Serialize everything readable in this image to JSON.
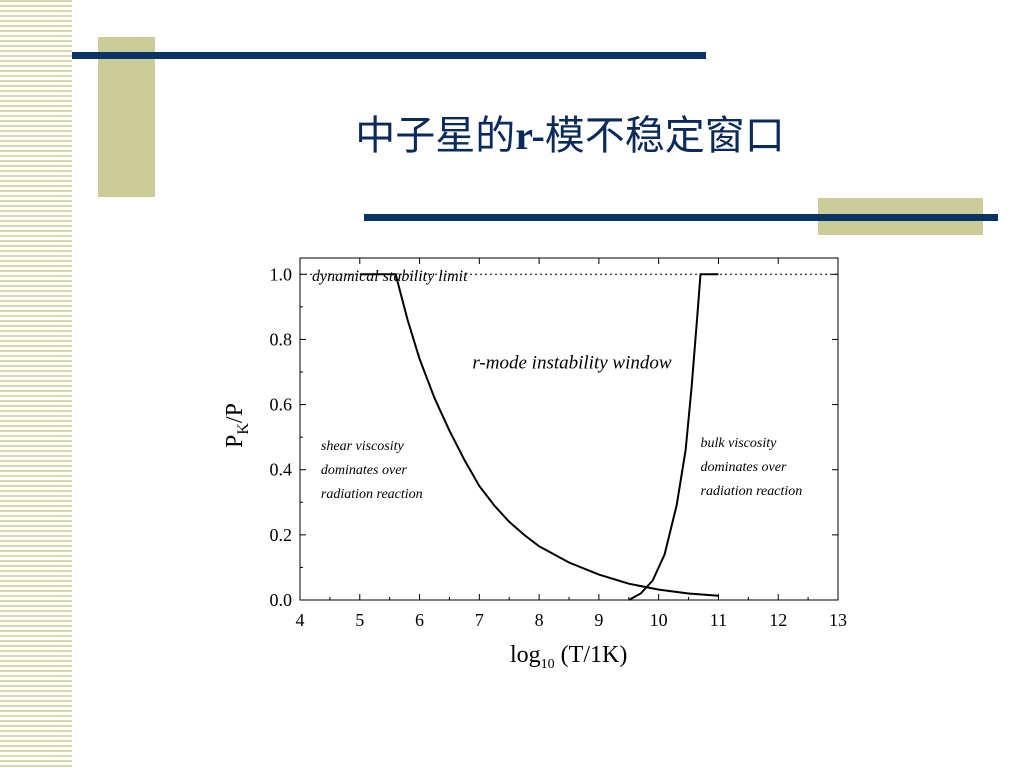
{
  "slide": {
    "title_prefix": "中子星的",
    "title_bold": "r-",
    "title_suffix": "模不稳定窗口",
    "colors": {
      "title": "#0a2a5c",
      "accent_bar": "#0a3366",
      "accent_block": "#cccc99"
    }
  },
  "chart_data": {
    "type": "line",
    "xlabel_main": "log",
    "xlabel_sub": "10",
    "xlabel_rest": " (T/1K)",
    "ylabel_main": "P",
    "ylabel_sub": "K",
    "ylabel_rest": "/P",
    "xlim": [
      4,
      13
    ],
    "ylim": [
      0,
      1.05
    ],
    "xticks": [
      4,
      5,
      6,
      7,
      8,
      9,
      10,
      11,
      12,
      13
    ],
    "yticks": [
      "0.0",
      "0.2",
      "0.4",
      "0.6",
      "0.8",
      "1.0"
    ],
    "reference_line": {
      "y": 1.0,
      "style": "dotted",
      "label": "dynamical stability limit"
    },
    "series": [
      {
        "role": "shear-viscosity-boundary",
        "x": [
          5.0,
          5.6,
          5.8,
          6.0,
          6.25,
          6.5,
          6.75,
          7.0,
          7.25,
          7.5,
          7.75,
          8.0,
          8.5,
          9.0,
          9.5,
          10.0,
          10.5,
          11.0
        ],
        "y": [
          1.0,
          1.0,
          0.86,
          0.74,
          0.62,
          0.52,
          0.43,
          0.35,
          0.29,
          0.24,
          0.2,
          0.165,
          0.115,
          0.078,
          0.05,
          0.032,
          0.02,
          0.013
        ]
      },
      {
        "role": "bulk-viscosity-boundary",
        "x": [
          9.5,
          9.7,
          9.9,
          10.1,
          10.3,
          10.45,
          10.55,
          10.65,
          10.7,
          11.0
        ],
        "y": [
          0.0,
          0.02,
          0.06,
          0.14,
          0.29,
          0.46,
          0.65,
          0.88,
          1.0,
          1.0
        ]
      }
    ],
    "annotations": [
      {
        "id": "window",
        "text": "r-mode instability window",
        "x": 8.55,
        "y": 0.71
      },
      {
        "id": "shear",
        "lines": [
          "shear viscosity",
          "dominates over",
          "radiation reaction"
        ],
        "x": 4.35,
        "y": 0.46
      },
      {
        "id": "bulk",
        "lines": [
          "bulk viscosity",
          "dominates over",
          "radiation reaction"
        ],
        "x": 10.7,
        "y": 0.47
      }
    ],
    "grid": false
  }
}
